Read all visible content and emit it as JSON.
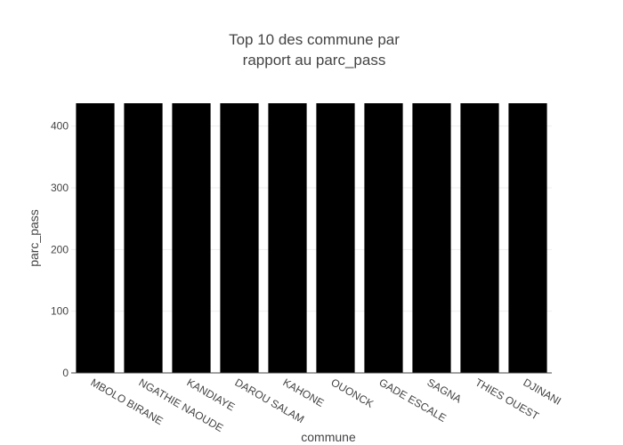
{
  "chart_data": {
    "type": "bar",
    "title_lines": [
      "Top 10 des commune par",
      "rapport au parc_pass"
    ],
    "xlabel": "commune",
    "ylabel": "parc_pass",
    "categories": [
      "MBOLO BIRANE",
      "NGATHIE NAOUDE",
      "KANDIAYE",
      "DAROU SALAM",
      "KAHONE",
      "OUONCK",
      "GADE ESCALE",
      "SAGNA",
      "THIES OUEST",
      "DJINANI"
    ],
    "values": [
      437,
      437,
      437,
      437,
      437,
      437,
      437,
      437,
      437,
      437
    ],
    "ylim": [
      0,
      437
    ],
    "yticks": [
      0,
      100,
      200,
      300,
      400
    ],
    "grid": true,
    "bar_color": "#000000",
    "grid_color": "#eeeeee",
    "axis_color": "#444444"
  }
}
